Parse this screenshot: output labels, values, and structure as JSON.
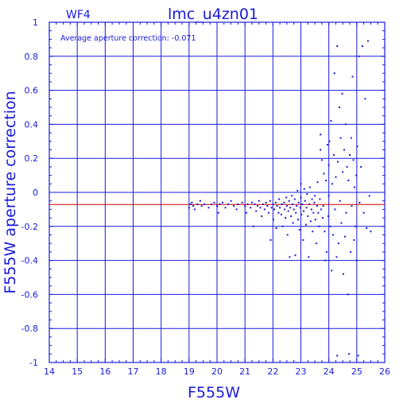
{
  "chart_data": {
    "type": "scatter",
    "chip_label": "WF4",
    "title": "lmc_u4zn01",
    "annotation": "Average aperture correction: -0.071",
    "xlabel": "F555W",
    "ylabel": "F555W aperture correction",
    "xlim": [
      14,
      26
    ],
    "ylim": [
      -1,
      1
    ],
    "xticks": [
      "14",
      "15",
      "16",
      "17",
      "18",
      "19",
      "20",
      "21",
      "22",
      "23",
      "24",
      "25",
      "26"
    ],
    "yticks": [
      "-1",
      "-0.8",
      "-0.6",
      "-0.4",
      "-0.2",
      "0",
      "0.2",
      "0.4",
      "0.6",
      "0.8",
      "1"
    ],
    "grid": true,
    "reference_line": -0.071,
    "colors": {
      "axis": "#1a1adc",
      "points": "#1a1adc",
      "reference_line": "#cc0000"
    },
    "points": [
      [
        19.0,
        -0.09
      ],
      [
        19.05,
        -0.07
      ],
      [
        19.1,
        -0.06
      ],
      [
        19.15,
        -0.08
      ],
      [
        19.2,
        -0.1
      ],
      [
        19.3,
        -0.07
      ],
      [
        19.4,
        -0.05
      ],
      [
        19.45,
        -0.08
      ],
      [
        19.55,
        -0.07
      ],
      [
        19.7,
        -0.09
      ],
      [
        19.8,
        -0.07
      ],
      [
        19.9,
        -0.06
      ],
      [
        20.0,
        -0.08
      ],
      [
        20.05,
        -0.12
      ],
      [
        20.1,
        -0.07
      ],
      [
        20.2,
        -0.06
      ],
      [
        20.3,
        -0.09
      ],
      [
        20.4,
        -0.07
      ],
      [
        20.5,
        -0.05
      ],
      [
        20.6,
        -0.08
      ],
      [
        20.7,
        -0.1
      ],
      [
        20.75,
        -0.07
      ],
      [
        20.9,
        -0.06
      ],
      [
        21.0,
        -0.08
      ],
      [
        21.05,
        -0.12
      ],
      [
        21.1,
        -0.07
      ],
      [
        21.2,
        -0.09
      ],
      [
        21.25,
        -0.06
      ],
      [
        21.3,
        -0.2
      ],
      [
        21.35,
        -0.07
      ],
      [
        21.4,
        -0.11
      ],
      [
        21.45,
        -0.08
      ],
      [
        21.5,
        -0.05
      ],
      [
        21.55,
        -0.09
      ],
      [
        21.6,
        -0.14
      ],
      [
        21.65,
        -0.07
      ],
      [
        21.7,
        -0.1
      ],
      [
        21.75,
        -0.06
      ],
      [
        21.8,
        -0.08
      ],
      [
        21.85,
        -0.12
      ],
      [
        21.9,
        -0.05
      ],
      [
        21.92,
        -0.28
      ],
      [
        21.95,
        -0.09
      ],
      [
        22.0,
        -0.07
      ],
      [
        22.02,
        -0.16
      ],
      [
        22.05,
        -0.1
      ],
      [
        22.1,
        -0.06
      ],
      [
        22.12,
        -0.21
      ],
      [
        22.15,
        -0.08
      ],
      [
        22.2,
        -0.12
      ],
      [
        22.22,
        -0.04
      ],
      [
        22.25,
        -0.09
      ],
      [
        22.3,
        -0.13
      ],
      [
        22.32,
        -0.07
      ],
      [
        22.35,
        -0.2
      ],
      [
        22.4,
        -0.06
      ],
      [
        22.42,
        -0.1
      ],
      [
        22.45,
        -0.15
      ],
      [
        22.48,
        -0.03
      ],
      [
        22.5,
        -0.08
      ],
      [
        22.52,
        -0.25
      ],
      [
        22.55,
        -0.11
      ],
      [
        22.58,
        -0.05
      ],
      [
        22.6,
        -0.38
      ],
      [
        22.62,
        -0.09
      ],
      [
        22.65,
        -0.14
      ],
      [
        22.68,
        -0.02
      ],
      [
        22.7,
        -0.07
      ],
      [
        22.72,
        -0.18
      ],
      [
        22.75,
        -0.1
      ],
      [
        22.78,
        -0.04
      ],
      [
        22.8,
        -0.37
      ],
      [
        22.82,
        -0.12
      ],
      [
        22.85,
        -0.08
      ],
      [
        22.88,
        0.01
      ],
      [
        22.9,
        -0.16
      ],
      [
        22.92,
        -0.06
      ],
      [
        22.95,
        -0.22
      ],
      [
        22.98,
        -0.09
      ],
      [
        23.0,
        -0.03
      ],
      [
        23.0,
        0.05
      ],
      [
        23.02,
        -0.13
      ],
      [
        23.05,
        -0.07
      ],
      [
        23.08,
        -0.28
      ],
      [
        23.1,
        -0.11
      ],
      [
        23.12,
        0.02
      ],
      [
        23.15,
        -0.05
      ],
      [
        23.18,
        -0.19
      ],
      [
        23.2,
        -0.09
      ],
      [
        23.22,
        -0.01
      ],
      [
        23.25,
        -0.14
      ],
      [
        23.28,
        -0.38
      ],
      [
        23.3,
        -0.07
      ],
      [
        23.32,
        0.03
      ],
      [
        23.35,
        -0.17
      ],
      [
        23.38,
        -0.1
      ],
      [
        23.4,
        -0.04
      ],
      [
        23.42,
        -0.23
      ],
      [
        23.45,
        -0.12
      ],
      [
        23.48,
        -0.06
      ],
      [
        23.5,
        -0.02
      ],
      [
        23.52,
        -0.16
      ],
      [
        23.55,
        -0.3
      ],
      [
        23.58,
        -0.08
      ],
      [
        23.6,
        0.06
      ],
      [
        23.62,
        -0.12
      ],
      [
        23.65,
        -0.2
      ],
      [
        23.68,
        -0.04
      ],
      [
        23.7,
        0.25
      ],
      [
        23.7,
        0.34
      ],
      [
        23.72,
        -0.1
      ],
      [
        23.75,
        0.19
      ],
      [
        23.78,
        -0.15
      ],
      [
        23.8,
        -0.08
      ],
      [
        23.82,
        0.11
      ],
      [
        23.85,
        -0.23
      ],
      [
        23.88,
        -0.4
      ],
      [
        23.9,
        0.07
      ],
      [
        23.92,
        -0.35
      ],
      [
        23.95,
        0.28
      ],
      [
        23.98,
        -0.14
      ],
      [
        24.0,
        0.16
      ],
      [
        24.0,
        -0.02
      ],
      [
        24.02,
        0.3
      ],
      [
        24.05,
        -0.2
      ],
      [
        24.08,
        0.42
      ],
      [
        24.1,
        -0.46
      ],
      [
        24.12,
        0.05
      ],
      [
        24.15,
        -0.25
      ],
      [
        24.18,
        0.22
      ],
      [
        24.2,
        0.7
      ],
      [
        24.22,
        -0.1
      ],
      [
        24.25,
        0.09
      ],
      [
        24.28,
        -0.38
      ],
      [
        24.3,
        0.86
      ],
      [
        24.3,
        -0.96
      ],
      [
        24.32,
        0.18
      ],
      [
        24.35,
        -0.3
      ],
      [
        24.38,
        0.5
      ],
      [
        24.4,
        -0.05
      ],
      [
        24.42,
        0.32
      ],
      [
        24.45,
        -0.18
      ],
      [
        24.48,
        0.58
      ],
      [
        24.5,
        0.12
      ],
      [
        24.52,
        -0.48
      ],
      [
        24.55,
        0.25
      ],
      [
        24.58,
        -0.26
      ],
      [
        24.6,
        0.4
      ],
      [
        24.62,
        -0.12
      ],
      [
        24.65,
        0.15
      ],
      [
        24.68,
        -0.6
      ],
      [
        24.7,
        0.07
      ],
      [
        24.72,
        -0.95
      ],
      [
        24.75,
        0.22
      ],
      [
        24.78,
        -0.35
      ],
      [
        24.8,
        0.32
      ],
      [
        24.82,
        -0.08
      ],
      [
        24.85,
        0.68
      ],
      [
        24.88,
        0.19
      ],
      [
        24.9,
        -0.28
      ],
      [
        24.92,
        0.03
      ],
      [
        24.95,
        -0.2
      ],
      [
        24.98,
        0.1
      ],
      [
        25.0,
        -0.4
      ],
      [
        25.02,
        0.27
      ],
      [
        25.05,
        -0.96
      ],
      [
        25.08,
        0.8
      ],
      [
        25.1,
        -0.06
      ],
      [
        25.15,
        0.15
      ],
      [
        25.2,
        0.86
      ],
      [
        25.25,
        -0.12
      ],
      [
        25.3,
        0.55
      ],
      [
        25.35,
        -0.21
      ],
      [
        25.4,
        0.89
      ],
      [
        25.45,
        -0.02
      ],
      [
        25.5,
        -0.23
      ]
    ]
  }
}
